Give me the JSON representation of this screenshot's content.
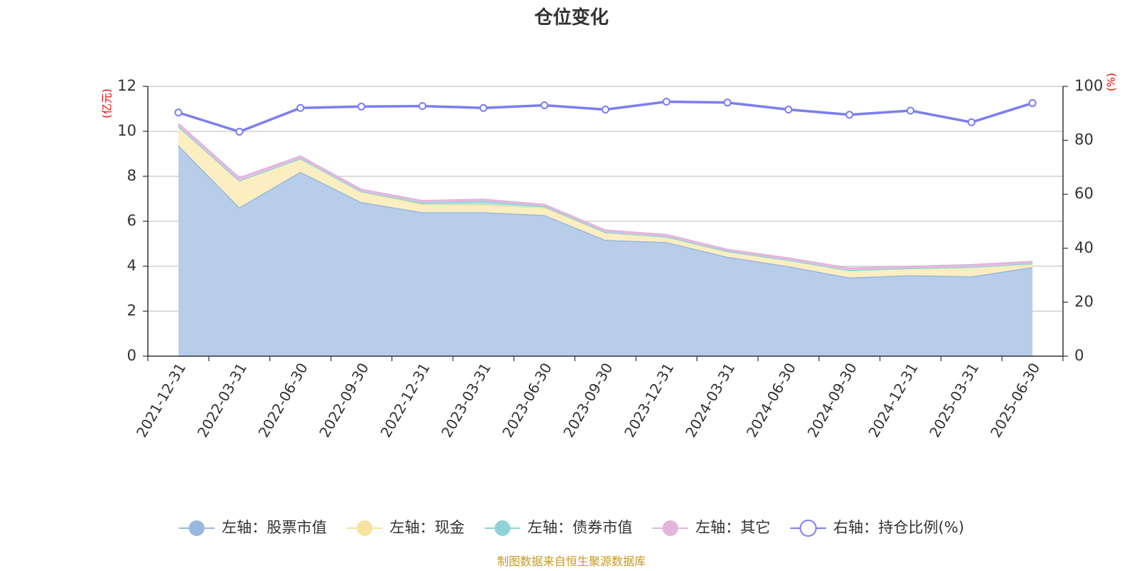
{
  "chart_data": {
    "type": "area",
    "title": "仓位变化",
    "left_axis_unit": "(亿元)",
    "right_axis_unit": "(%)",
    "categories": [
      "2021-12-31",
      "2022-03-31",
      "2022-06-30",
      "2022-09-30",
      "2022-12-31",
      "2023-03-31",
      "2023-06-30",
      "2023-09-30",
      "2023-12-31",
      "2024-03-31",
      "2024-06-30",
      "2024-09-30",
      "2024-12-31",
      "2025-03-31",
      "2025-06-30"
    ],
    "left_ylim": [
      0,
      12
    ],
    "left_yticks": [
      0,
      2,
      4,
      6,
      8,
      10,
      12
    ],
    "right_ylim": [
      0,
      100
    ],
    "right_yticks": [
      0,
      20,
      40,
      60,
      80,
      100
    ],
    "grid": true,
    "legend_position": "bottom",
    "stacked": true,
    "series": [
      {
        "name": "左轴：股票市值",
        "axis": "left",
        "color": "#9ab7df",
        "fill": "#b8cdea",
        "values": [
          9.38,
          6.62,
          8.2,
          6.85,
          6.4,
          6.4,
          6.28,
          5.17,
          5.07,
          4.42,
          4.0,
          3.5,
          3.6,
          3.55,
          3.96
        ]
      },
      {
        "name": "左轴：现金",
        "axis": "left",
        "color": "#f7e3a0",
        "fill": "#fbeec0",
        "values": [
          0.85,
          1.2,
          0.6,
          0.48,
          0.35,
          0.35,
          0.33,
          0.35,
          0.25,
          0.25,
          0.28,
          0.33,
          0.32,
          0.42,
          0.17
        ]
      },
      {
        "name": "左轴：债券市值",
        "axis": "left",
        "color": "#8fd3d6",
        "fill": "#aee0e2",
        "values": [
          0.0,
          0.0,
          0.0,
          0.0,
          0.08,
          0.15,
          0.06,
          0.0,
          0.0,
          0.0,
          0.0,
          0.0,
          0.0,
          0.0,
          0.0
        ]
      },
      {
        "name": "左轴：其它",
        "axis": "left",
        "color": "#e3b5dc",
        "fill": "#ecc8e6",
        "values": [
          0.1,
          0.1,
          0.08,
          0.07,
          0.07,
          0.06,
          0.06,
          0.07,
          0.07,
          0.06,
          0.07,
          0.07,
          0.06,
          0.08,
          0.07
        ]
      },
      {
        "name": "右轴：持仓比例(%)",
        "axis": "right",
        "type": "line",
        "color": "#7b7ef0",
        "values": [
          90.3,
          83.2,
          92.0,
          92.5,
          92.7,
          92.0,
          93.0,
          91.4,
          94.3,
          94.0,
          91.4,
          89.5,
          91.0,
          86.7,
          93.8
        ]
      }
    ],
    "source": "制图数据来自恒生聚源数据库"
  }
}
